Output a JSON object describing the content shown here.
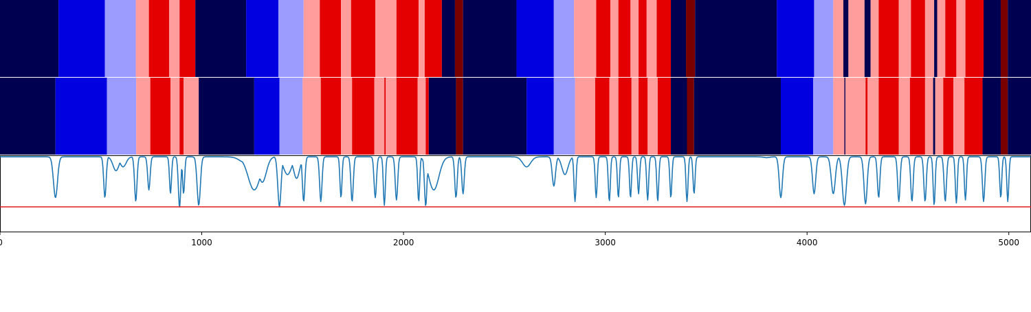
{
  "chart_data": {
    "type": "heatmap",
    "title": "",
    "xlabel": "",
    "ylabel": "",
    "xlim": [
      0,
      5110
    ],
    "x_ticks": [
      "0",
      "1000",
      "2000",
      "3000",
      "4000",
      "5000"
    ],
    "x_tick_values": [
      0,
      1000,
      2000,
      3000,
      4000,
      5000
    ],
    "palette": {
      "0": "#000050",
      "1": "#0000e0",
      "2": "#9c9cff",
      "3": "#ff9c9c",
      "4": "#e40000",
      "5": "#7a0000"
    },
    "grid": false,
    "legend": "none",
    "bands": [
      {
        "segments": [
          [
            0,
            290,
            0
          ],
          [
            290,
            520,
            1
          ],
          [
            520,
            673,
            2
          ],
          [
            673,
            738,
            3
          ],
          [
            738,
            838,
            4
          ],
          [
            838,
            890,
            3
          ],
          [
            890,
            968,
            4
          ],
          [
            968,
            1220,
            0
          ],
          [
            1220,
            1380,
            1
          ],
          [
            1380,
            1505,
            2
          ],
          [
            1505,
            1585,
            3
          ],
          [
            1585,
            1690,
            4
          ],
          [
            1690,
            1740,
            3
          ],
          [
            1740,
            1860,
            4
          ],
          [
            1860,
            1965,
            3
          ],
          [
            1965,
            2075,
            4
          ],
          [
            2075,
            2105,
            3
          ],
          [
            2105,
            2190,
            4
          ],
          [
            2190,
            2255,
            0
          ],
          [
            2255,
            2295,
            5
          ],
          [
            2295,
            2560,
            0
          ],
          [
            2560,
            2745,
            1
          ],
          [
            2745,
            2845,
            2
          ],
          [
            2845,
            2955,
            3
          ],
          [
            2955,
            3025,
            4
          ],
          [
            3025,
            3065,
            3
          ],
          [
            3065,
            3125,
            4
          ],
          [
            3125,
            3165,
            3
          ],
          [
            3165,
            3205,
            4
          ],
          [
            3205,
            3255,
            3
          ],
          [
            3255,
            3325,
            4
          ],
          [
            3325,
            3400,
            0
          ],
          [
            3400,
            3445,
            5
          ],
          [
            3445,
            3850,
            0
          ],
          [
            3850,
            4035,
            1
          ],
          [
            4035,
            4130,
            2
          ],
          [
            4130,
            4180,
            3
          ],
          [
            4180,
            4205,
            0
          ],
          [
            4205,
            4285,
            3
          ],
          [
            4285,
            4315,
            0
          ],
          [
            4315,
            4355,
            3
          ],
          [
            4355,
            4455,
            4
          ],
          [
            4455,
            4515,
            3
          ],
          [
            4515,
            4585,
            4
          ],
          [
            4585,
            4630,
            3
          ],
          [
            4630,
            4645,
            0
          ],
          [
            4645,
            4685,
            3
          ],
          [
            4685,
            4740,
            4
          ],
          [
            4740,
            4785,
            3
          ],
          [
            4785,
            4875,
            4
          ],
          [
            4875,
            4960,
            0
          ],
          [
            4960,
            4995,
            5
          ],
          [
            4995,
            5110,
            0
          ]
        ]
      },
      {
        "segments": [
          [
            0,
            275,
            0
          ],
          [
            275,
            530,
            1
          ],
          [
            530,
            675,
            2
          ],
          [
            675,
            745,
            3
          ],
          [
            745,
            845,
            4
          ],
          [
            845,
            890,
            3
          ],
          [
            890,
            910,
            4
          ],
          [
            910,
            985,
            3
          ],
          [
            985,
            1260,
            0
          ],
          [
            1260,
            1385,
            1
          ],
          [
            1385,
            1500,
            2
          ],
          [
            1500,
            1590,
            3
          ],
          [
            1590,
            1690,
            4
          ],
          [
            1690,
            1745,
            3
          ],
          [
            1745,
            1855,
            4
          ],
          [
            1855,
            1905,
            3
          ],
          [
            1905,
            1912,
            4
          ],
          [
            1912,
            1965,
            3
          ],
          [
            1965,
            2070,
            4
          ],
          [
            2070,
            2110,
            3
          ],
          [
            2110,
            2125,
            4
          ],
          [
            2125,
            2260,
            0
          ],
          [
            2260,
            2295,
            5
          ],
          [
            2295,
            2610,
            0
          ],
          [
            2610,
            2745,
            1
          ],
          [
            2745,
            2850,
            2
          ],
          [
            2850,
            2950,
            3
          ],
          [
            2950,
            3020,
            4
          ],
          [
            3020,
            3065,
            3
          ],
          [
            3065,
            3130,
            4
          ],
          [
            3130,
            3165,
            3
          ],
          [
            3165,
            3210,
            4
          ],
          [
            3210,
            3260,
            3
          ],
          [
            3260,
            3325,
            4
          ],
          [
            3325,
            3405,
            0
          ],
          [
            3405,
            3440,
            5
          ],
          [
            3440,
            3870,
            0
          ],
          [
            3870,
            4030,
            1
          ],
          [
            4030,
            4130,
            2
          ],
          [
            4130,
            4185,
            3
          ],
          [
            4185,
            4190,
            0
          ],
          [
            4190,
            4290,
            3
          ],
          [
            4290,
            4300,
            4
          ],
          [
            4300,
            4355,
            3
          ],
          [
            4355,
            4455,
            4
          ],
          [
            4455,
            4510,
            3
          ],
          [
            4510,
            4585,
            4
          ],
          [
            4585,
            4625,
            3
          ],
          [
            4625,
            4635,
            0
          ],
          [
            4635,
            4675,
            3
          ],
          [
            4675,
            4725,
            4
          ],
          [
            4725,
            4780,
            3
          ],
          [
            4780,
            4870,
            4
          ],
          [
            4870,
            4960,
            0
          ],
          [
            4960,
            4995,
            5
          ],
          [
            4995,
            5110,
            0
          ]
        ]
      }
    ],
    "signal": {
      "ylim": [
        0,
        1
      ],
      "threshold": 0.33,
      "threshold_color": "#e41a1c",
      "line_color": "#1f77b4",
      "baseline": 0.98,
      "dips": [
        [
          275,
          0.45,
          10
        ],
        [
          520,
          0.45,
          6
        ],
        [
          575,
          0.8,
          15
        ],
        [
          610,
          0.85,
          15
        ],
        [
          673,
          0.4,
          6
        ],
        [
          738,
          0.55,
          6
        ],
        [
          845,
          0.5,
          5
        ],
        [
          890,
          0.32,
          6
        ],
        [
          910,
          0.5,
          5
        ],
        [
          985,
          0.35,
          8
        ],
        [
          1220,
          0.9,
          30
        ],
        [
          1260,
          0.55,
          30
        ],
        [
          1300,
          0.65,
          20
        ],
        [
          1385,
          0.33,
          8
        ],
        [
          1425,
          0.75,
          20
        ],
        [
          1470,
          0.7,
          15
        ],
        [
          1505,
          0.4,
          6
        ],
        [
          1590,
          0.4,
          6
        ],
        [
          1690,
          0.45,
          5
        ],
        [
          1745,
          0.4,
          6
        ],
        [
          1860,
          0.45,
          6
        ],
        [
          1905,
          0.35,
          5
        ],
        [
          1965,
          0.42,
          6
        ],
        [
          2075,
          0.4,
          5
        ],
        [
          2110,
          0.34,
          6
        ],
        [
          2150,
          0.55,
          25
        ],
        [
          2260,
          0.45,
          6
        ],
        [
          2295,
          0.5,
          6
        ],
        [
          2610,
          0.85,
          20
        ],
        [
          2745,
          0.6,
          8
        ],
        [
          2800,
          0.75,
          15
        ],
        [
          2850,
          0.4,
          5
        ],
        [
          2955,
          0.45,
          5
        ],
        [
          3020,
          0.4,
          5
        ],
        [
          3065,
          0.45,
          5
        ],
        [
          3125,
          0.45,
          5
        ],
        [
          3165,
          0.5,
          5
        ],
        [
          3210,
          0.42,
          5
        ],
        [
          3260,
          0.4,
          5
        ],
        [
          3325,
          0.45,
          5
        ],
        [
          3405,
          0.4,
          5
        ],
        [
          3440,
          0.5,
          5
        ],
        [
          3800,
          0.97,
          15
        ],
        [
          3870,
          0.45,
          8
        ],
        [
          4035,
          0.5,
          8
        ],
        [
          4130,
          0.5,
          10
        ],
        [
          4185,
          0.35,
          10
        ],
        [
          4290,
          0.37,
          8
        ],
        [
          4355,
          0.45,
          6
        ],
        [
          4455,
          0.4,
          6
        ],
        [
          4520,
          0.4,
          6
        ],
        [
          4585,
          0.4,
          6
        ],
        [
          4630,
          0.35,
          5
        ],
        [
          4685,
          0.4,
          6
        ],
        [
          4740,
          0.38,
          5
        ],
        [
          4785,
          0.42,
          5
        ],
        [
          4875,
          0.4,
          6
        ],
        [
          4960,
          0.45,
          5
        ],
        [
          4995,
          0.4,
          5
        ]
      ]
    }
  }
}
